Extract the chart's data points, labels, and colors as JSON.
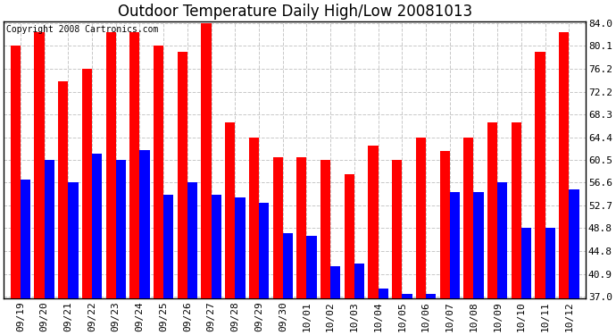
{
  "title": "Outdoor Temperature Daily High/Low 20081013",
  "copyright": "Copyright 2008 Cartronics.com",
  "dates": [
    "09/19",
    "09/20",
    "09/21",
    "09/22",
    "09/23",
    "09/24",
    "09/25",
    "09/26",
    "09/27",
    "09/28",
    "09/29",
    "09/30",
    "10/01",
    "10/02",
    "10/03",
    "10/04",
    "10/05",
    "10/06",
    "10/07",
    "10/08",
    "10/09",
    "10/10",
    "10/11",
    "10/12"
  ],
  "highs": [
    80.1,
    82.4,
    74.0,
    76.2,
    82.4,
    82.4,
    80.1,
    79.0,
    84.0,
    67.0,
    64.4,
    61.0,
    61.0,
    60.5,
    58.0,
    63.0,
    60.5,
    64.4,
    62.0,
    64.4,
    67.0,
    67.0,
    79.0,
    82.4
  ],
  "lows": [
    57.2,
    60.5,
    56.6,
    61.5,
    60.5,
    62.2,
    54.5,
    56.6,
    54.5,
    54.0,
    53.2,
    48.0,
    47.5,
    42.2,
    42.8,
    38.5,
    37.5,
    37.5,
    55.0,
    55.0,
    56.6,
    48.8,
    48.8,
    55.5
  ],
  "high_color": "#ff0000",
  "low_color": "#0000ff",
  "bg_color": "#ffffff",
  "grid_color": "#c8c8c8",
  "bar_width": 0.42,
  "ylim_min": 37.0,
  "ylim_max": 84.0,
  "yticks": [
    37.0,
    40.9,
    44.8,
    48.8,
    52.7,
    56.6,
    60.5,
    64.4,
    68.3,
    72.2,
    76.2,
    80.1,
    84.0
  ],
  "title_fontsize": 12,
  "tick_fontsize": 8,
  "copyright_fontsize": 7
}
